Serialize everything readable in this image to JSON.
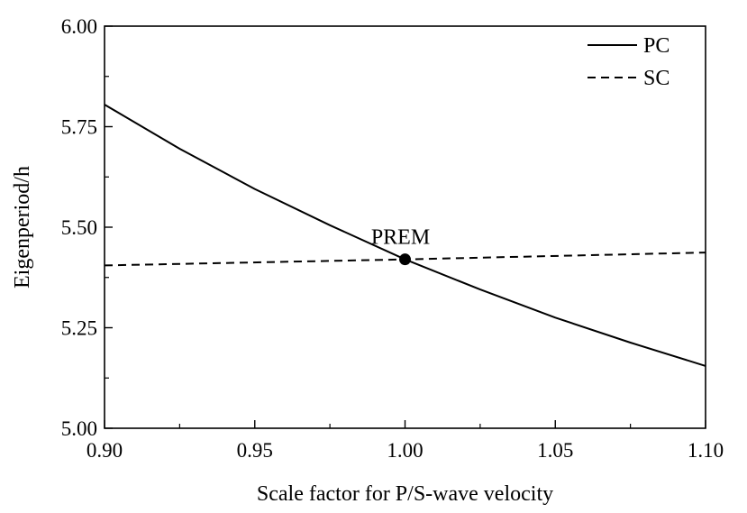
{
  "chart_data": {
    "type": "line",
    "title": "",
    "xlabel": "Scale factor for P/S-wave velocity",
    "ylabel": "Eigenperiod/h",
    "xlim": [
      0.9,
      1.1
    ],
    "ylim": [
      5.0,
      6.0
    ],
    "x_ticks": [
      "0.90",
      "0.95",
      "1.00",
      "1.05",
      "1.10"
    ],
    "y_ticks": [
      "5.00",
      "5.25",
      "5.50",
      "5.75",
      "6.00"
    ],
    "x_tick_values": [
      0.9,
      0.95,
      1.0,
      1.05,
      1.1
    ],
    "y_tick_values": [
      5.0,
      5.25,
      5.5,
      5.75,
      6.0
    ],
    "x_minor_step": 0.025,
    "y_minor_step": 0.125,
    "legend_position": "top-right",
    "series": [
      {
        "name": "PC",
        "style": "solid",
        "color": "#000000",
        "x": [
          0.9,
          0.925,
          0.95,
          0.975,
          1.0,
          1.025,
          1.05,
          1.075,
          1.1
        ],
        "y": [
          5.805,
          5.695,
          5.595,
          5.505,
          5.42,
          5.345,
          5.275,
          5.213,
          5.155
        ]
      },
      {
        "name": "SC",
        "style": "dashed",
        "color": "#000000",
        "x": [
          0.9,
          1.0,
          1.1
        ],
        "y": [
          5.405,
          5.42,
          5.437
        ]
      }
    ],
    "annotations": [
      {
        "label": "PREM",
        "x": 1.0,
        "y": 5.42
      }
    ]
  }
}
